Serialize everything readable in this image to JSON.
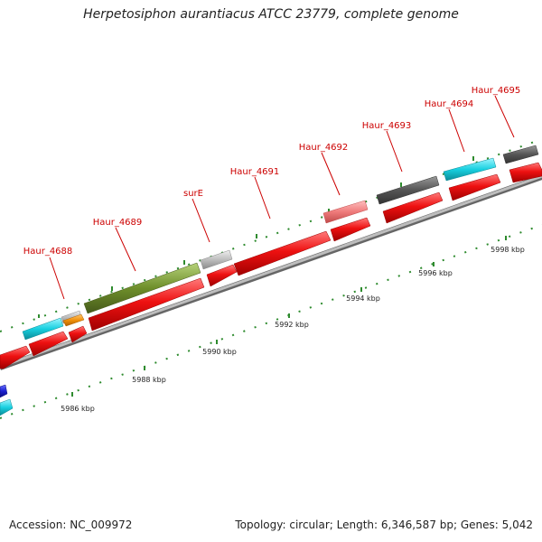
{
  "title": "Herpetosiphon aurantiacus ATCC 23779, complete genome",
  "footer": {
    "accession": "Accession: NC_009972",
    "summary": "Topology: circular; Length: 6,346,587 bp; Genes: 5,042"
  },
  "colors": {
    "cds": "#ee1111",
    "rrna_teal": "#11c8d8",
    "gray": "#bdbdbd",
    "dark_gray": "#555555",
    "olive": "#6e8e2a",
    "pink": "#ef7b7b",
    "orange": "#f0900a",
    "blue": "#1a20d0",
    "label_red": "#cc0000",
    "tick_green": "#2e8b2e",
    "backbone": "#999999"
  },
  "gene_labels": [
    "Haur_4688",
    "Haur_4689",
    "surE",
    "Haur_4691",
    "Haur_4692",
    "Haur_4693",
    "Haur_4694",
    "Haur_4695"
  ],
  "scale_labels": [
    "5986 kbp",
    "5988 kbp",
    "5990 kbp",
    "5992 kbp",
    "5994 kbp",
    "5996 kbp",
    "5998 kbp"
  ]
}
